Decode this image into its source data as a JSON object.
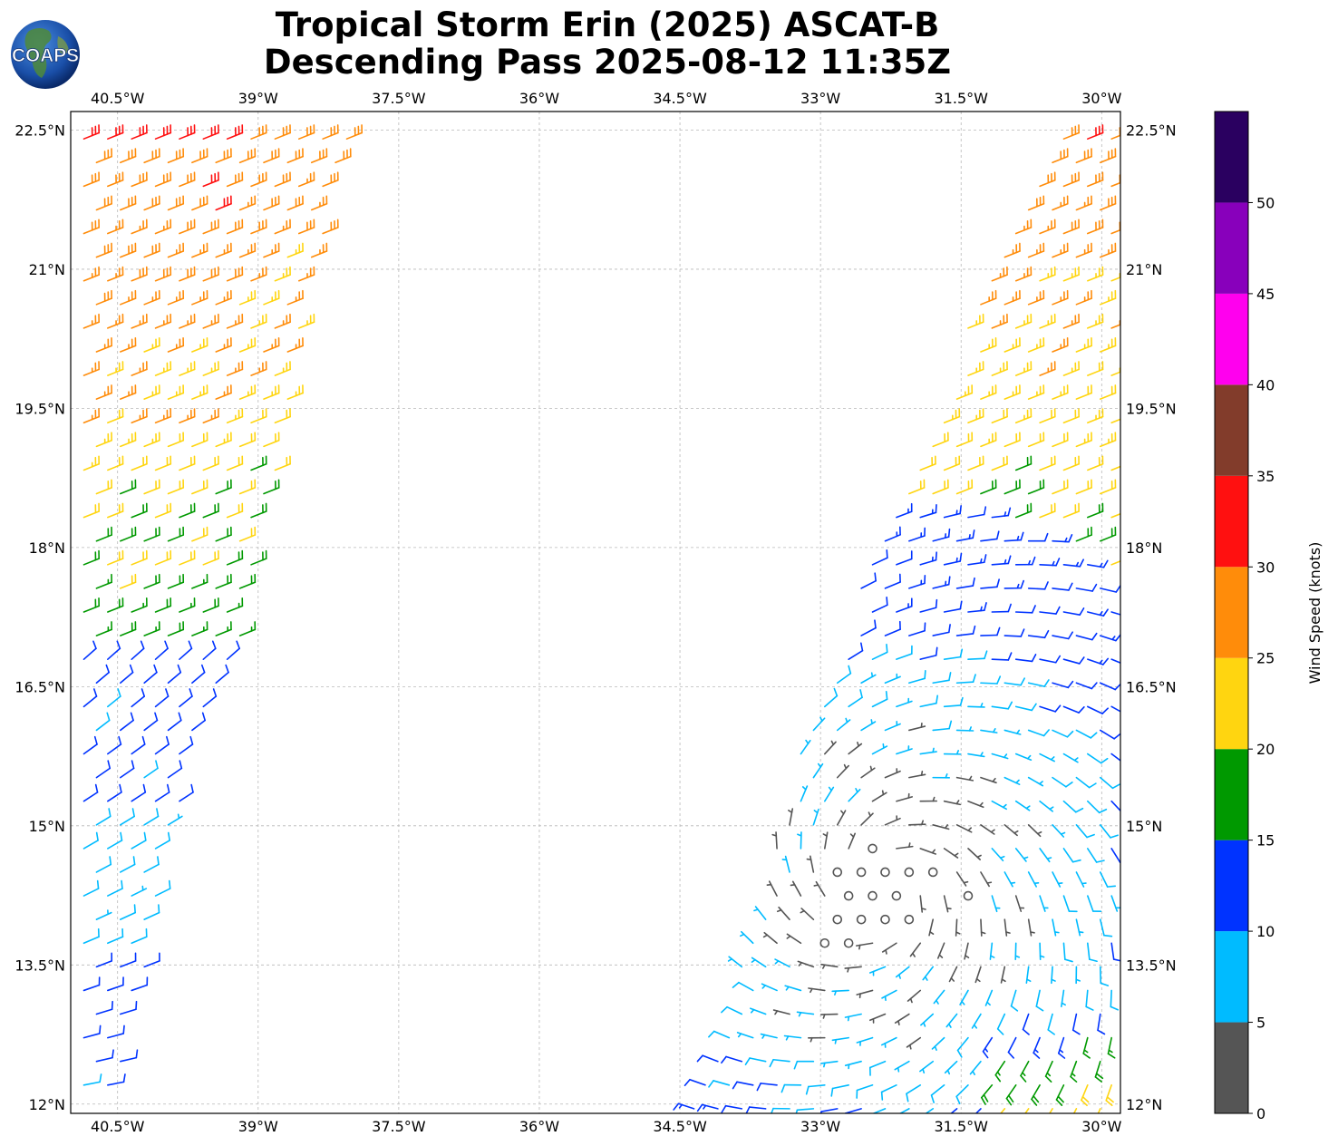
{
  "title": {
    "line1": "Tropical Storm Erin (2025) ASCAT-B",
    "line2": "Descending Pass 2025-08-12 11:35Z"
  },
  "logo": {
    "text": "COAPS",
    "icon": "globe-icon"
  },
  "map": {
    "lon_range": [
      -41.0,
      -29.8
    ],
    "lat_range": [
      11.9,
      22.7
    ],
    "lon_ticks": [
      -40.5,
      -39.0,
      -37.5,
      -36.0,
      -34.5,
      -33.0,
      -31.5,
      -30.0
    ],
    "lon_tick_labels": [
      "40.5°W",
      "39°W",
      "37.5°W",
      "36°W",
      "34.5°W",
      "33°W",
      "31.5°W",
      "30°W"
    ],
    "lat_ticks": [
      12.0,
      13.5,
      15.0,
      16.5,
      18.0,
      19.5,
      21.0,
      22.5
    ],
    "lat_tick_labels": [
      "12°N",
      "13.5°N",
      "15°N",
      "16.5°N",
      "18°N",
      "19.5°N",
      "21°N",
      "22.5°N"
    ],
    "gridlines": true,
    "storm_center": {
      "lon": -32.3,
      "lat": 14.35
    }
  },
  "colorbar": {
    "label": "Wind Speed (knots)",
    "ticks": [
      "0",
      "5",
      "10",
      "15",
      "20",
      "25",
      "30",
      "35",
      "40",
      "45",
      "50"
    ],
    "bins": [
      {
        "min": 0,
        "max": 5,
        "color": "#555555"
      },
      {
        "min": 5,
        "max": 10,
        "color": "#00bbff"
      },
      {
        "min": 10,
        "max": 15,
        "color": "#0033ff"
      },
      {
        "min": 15,
        "max": 20,
        "color": "#009900"
      },
      {
        "min": 20,
        "max": 25,
        "color": "#ffd510"
      },
      {
        "min": 25,
        "max": 30,
        "color": "#ff8c0a"
      },
      {
        "min": 30,
        "max": 35,
        "color": "#ff1010"
      },
      {
        "min": 35,
        "max": 40,
        "color": "#823c2b"
      },
      {
        "min": 40,
        "max": 45,
        "color": "#ff00ee"
      },
      {
        "min": 45,
        "max": 50,
        "color": "#8800bb"
      },
      {
        "min": 50,
        "max": 55,
        "color": "#2a0060"
      }
    ]
  },
  "swaths": [
    {
      "name": "west-swath",
      "polygon": [
        [
          -40.95,
          22.65
        ],
        [
          -38.0,
          22.65
        ],
        [
          -39.2,
          17.0
        ],
        [
          -39.85,
          15.2
        ],
        [
          -40.5,
          12.0
        ],
        [
          -40.95,
          12.0
        ]
      ]
    },
    {
      "name": "east-swath",
      "polygon": [
        [
          -29.8,
          22.65
        ],
        [
          -30.55,
          22.65
        ],
        [
          -32.15,
          18.5
        ],
        [
          -33.05,
          16.5
        ],
        [
          -33.7,
          13.9
        ],
        [
          -34.4,
          11.95
        ],
        [
          -29.8,
          11.95
        ]
      ]
    }
  ]
}
